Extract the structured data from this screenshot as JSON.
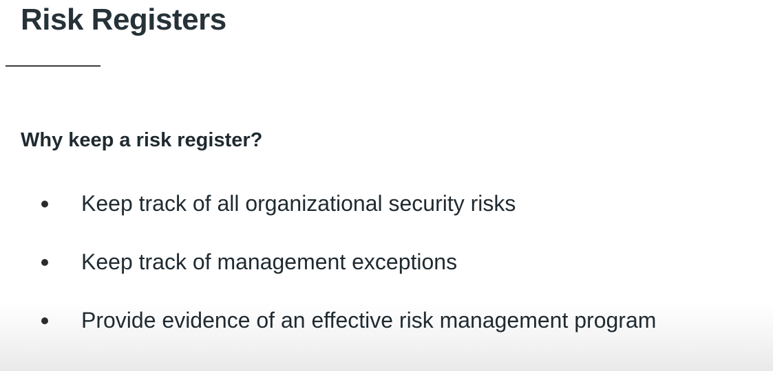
{
  "slide": {
    "title": "Risk Registers",
    "subheading": "Why keep a risk register?",
    "bullets": [
      {
        "text": "Keep track of all organizational security risks"
      },
      {
        "text": "Keep track of management exceptions"
      },
      {
        "text": "Provide evidence of an effective risk management program"
      }
    ]
  },
  "colors": {
    "text": "#1f2a30",
    "background": "#ffffff"
  }
}
